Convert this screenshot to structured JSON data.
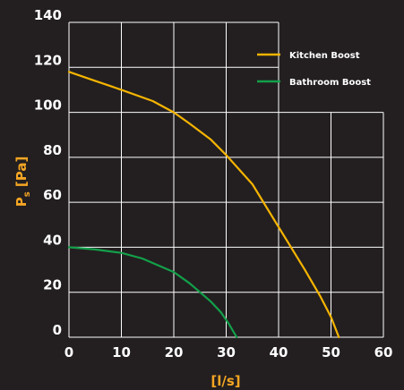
{
  "chart_data": {
    "type": "line",
    "x_ticks": [
      0,
      10,
      20,
      30,
      40,
      50,
      60
    ],
    "y_ticks": [
      0,
      20,
      40,
      60,
      80,
      100,
      120,
      140
    ],
    "xlim": [
      0,
      60
    ],
    "ylim": [
      0,
      140
    ],
    "xlabel": "[l/s]",
    "ylabel": "Ps [Pa]",
    "ylabel_main": "P",
    "ylabel_sub": "s",
    "ylabel_unit": " [Pa]",
    "grid": true,
    "legend_position": "top-right",
    "background_color": "#231f20",
    "grid_color": "#ffffff",
    "series": [
      {
        "name": "Kitchen Boost",
        "color": "#f5b400",
        "points": [
          [
            0,
            118
          ],
          [
            5,
            114
          ],
          [
            10,
            110
          ],
          [
            16,
            105
          ],
          [
            20,
            100
          ],
          [
            23,
            95
          ],
          [
            27,
            88
          ],
          [
            30,
            81
          ],
          [
            35,
            68
          ],
          [
            40,
            49
          ],
          [
            45,
            30
          ],
          [
            48,
            18
          ],
          [
            50,
            9
          ],
          [
            51.5,
            0
          ]
        ]
      },
      {
        "name": "Bathroom Boost",
        "color": "#13a04a",
        "points": [
          [
            0,
            40
          ],
          [
            5,
            39
          ],
          [
            10,
            37.5
          ],
          [
            14,
            35
          ],
          [
            18,
            31
          ],
          [
            20,
            29
          ],
          [
            23,
            24
          ],
          [
            25,
            20
          ],
          [
            27,
            16
          ],
          [
            29,
            11
          ],
          [
            30.5,
            6
          ],
          [
            32,
            0
          ]
        ]
      }
    ]
  }
}
